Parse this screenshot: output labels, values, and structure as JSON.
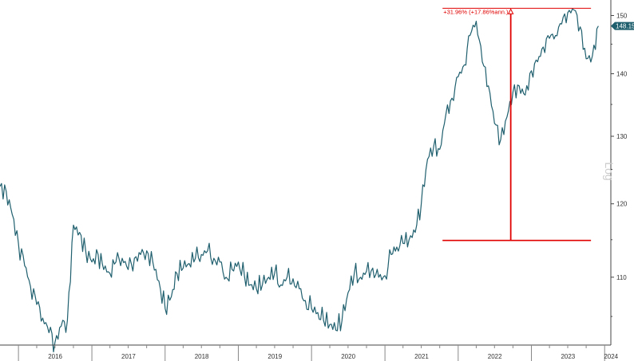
{
  "chart_data": {
    "type": "line",
    "title": "",
    "xlabel": "",
    "ylabel": "",
    "scale_label": "Log",
    "y_scale": "log",
    "ylim": [
      101.5,
      152.5
    ],
    "y_ticks": [
      110,
      120,
      130,
      140,
      150
    ],
    "x_tick_labels": [
      "2016",
      "2017",
      "2018",
      "2019",
      "2020",
      "2021",
      "2022",
      "2023",
      "2024"
    ],
    "grid": false,
    "series_color": "#1f5f6e",
    "annotation_color": "#e00000",
    "last_value_label": "148.15",
    "annotation_text": "+31.96% (+17.86%ann.)",
    "annotation_low": 114.9,
    "annotation_high": 151.3,
    "series": [
      {
        "x": [
          "2015-10-01",
          "2015-11-01",
          "2015-12-01",
          "2016-01-01",
          "2016-02-01",
          "2016-03-01",
          "2016-04-01",
          "2016-05-01",
          "2016-06-01",
          "2016-07-01",
          "2016-08-01",
          "2016-09-01",
          "2016-10-01",
          "2016-11-01",
          "2016-12-01",
          "2017-01-01",
          "2017-02-01",
          "2017-03-01",
          "2017-04-01",
          "2017-05-01",
          "2017-06-01",
          "2017-07-01",
          "2017-08-01",
          "2017-09-01",
          "2017-10-01",
          "2017-11-01",
          "2017-12-01",
          "2018-01-01",
          "2018-02-01",
          "2018-03-01",
          "2018-04-01",
          "2018-05-01",
          "2018-06-01",
          "2018-07-01",
          "2018-08-01",
          "2018-09-01",
          "2018-10-01",
          "2018-11-01",
          "2018-12-01",
          "2019-01-01",
          "2019-02-01",
          "2019-03-01",
          "2019-04-01",
          "2019-05-01",
          "2019-06-01",
          "2019-07-01",
          "2019-08-01",
          "2019-09-01",
          "2019-10-01",
          "2019-11-01",
          "2019-12-01",
          "2020-01-01",
          "2020-02-01",
          "2020-03-01",
          "2020-04-01",
          "2020-05-01",
          "2020-06-01",
          "2020-07-01",
          "2020-08-01",
          "2020-09-01",
          "2020-10-01",
          "2020-11-01",
          "2020-12-01",
          "2021-01-01",
          "2021-02-01",
          "2021-03-01",
          "2021-04-01",
          "2021-05-01",
          "2021-06-01",
          "2021-07-01",
          "2021-08-01",
          "2021-09-01",
          "2021-10-01",
          "2021-11-01",
          "2021-12-01",
          "2022-01-01",
          "2022-02-01",
          "2022-03-01",
          "2022-04-01",
          "2022-05-01",
          "2022-06-01",
          "2022-07-01",
          "2022-08-01",
          "2022-09-01",
          "2022-10-01",
          "2022-11-01",
          "2022-12-01",
          "2023-01-01",
          "2023-02-01",
          "2023-03-01",
          "2023-04-01",
          "2023-05-01",
          "2023-06-01",
          "2023-07-01",
          "2023-08-01",
          "2023-09-01",
          "2023-10-01",
          "2023-11-01",
          "2023-12-01"
        ],
        "values": [
          122.5,
          121.8,
          118.5,
          114.5,
          111.5,
          108.8,
          106.5,
          104.8,
          103.0,
          101.8,
          103.8,
          104.5,
          117.0,
          116.0,
          113.5,
          112.0,
          113.0,
          111.0,
          110.5,
          112.0,
          112.5,
          111.0,
          112.5,
          113.0,
          113.5,
          112.0,
          109.5,
          106.0,
          107.5,
          110.5,
          111.2,
          111.8,
          112.5,
          113.0,
          113.5,
          112.5,
          112.0,
          110.0,
          111.0,
          112.0,
          110.0,
          109.0,
          108.5,
          109.0,
          110.0,
          110.5,
          109.0,
          110.0,
          109.8,
          108.5,
          107.0,
          106.0,
          105.5,
          104.5,
          104.0,
          103.3,
          104.5,
          108.0,
          110.5,
          110.0,
          110.8,
          111.2,
          110.0,
          110.2,
          113.0,
          114.0,
          114.5,
          115.0,
          116.0,
          120.0,
          126.5,
          128.5,
          128.0,
          133.5,
          136.0,
          139.5,
          141.5,
          146.5,
          149.0,
          142.0,
          138.0,
          132.0,
          129.5,
          133.0,
          137.0,
          138.0,
          136.5,
          140.5,
          142.0,
          144.5,
          146.0,
          146.5,
          148.5,
          150.5,
          151.0,
          148.0,
          142.5,
          143.0,
          148.15
        ]
      }
    ]
  }
}
